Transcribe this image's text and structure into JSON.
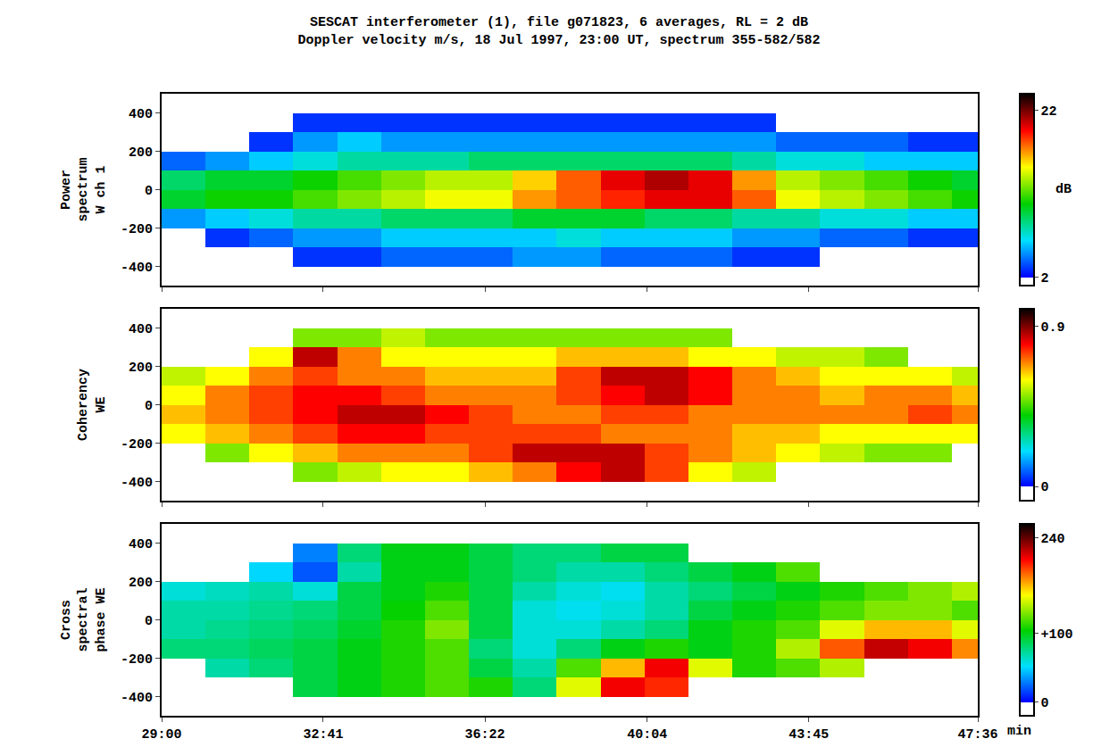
{
  "title": "SESCAT interferometer (1), file g071823, 6 averages, RL = 2 dB",
  "subtitle": "Doppler velocity m/s, 18 Jul 1997, 23:00 UT, spectrum 355-582/582",
  "chart_data": [
    {
      "type": "heatmap",
      "ylabel": "Power spectrum W ch 1",
      "tick_labels": "y",
      "x": [
        29.5,
        30.5,
        31.5,
        32.5,
        33.5,
        34.5,
        35.5,
        36.5,
        37.5,
        38.5,
        39.5,
        40.5,
        41.5,
        42.5,
        43.5,
        44.5,
        45.5,
        46.5,
        47.5
      ],
      "y": [
        -450,
        -350,
        -250,
        -150,
        -50,
        50,
        150,
        250,
        350,
        450
      ],
      "z": [
        [
          null,
          null,
          null,
          null,
          null,
          null,
          null,
          null,
          null,
          null,
          null,
          null,
          null,
          null,
          null,
          null,
          null,
          null,
          null
        ],
        [
          null,
          null,
          null,
          3,
          3,
          4,
          4,
          4,
          5,
          5,
          4,
          4,
          4,
          3,
          3,
          null,
          null,
          null,
          null
        ],
        [
          null,
          3,
          4,
          5,
          5,
          6,
          6,
          6,
          6,
          7,
          6,
          6,
          6,
          5,
          5,
          4,
          4,
          3,
          3
        ],
        [
          5,
          6,
          7,
          8,
          8,
          9,
          9,
          9,
          10,
          10,
          10,
          9,
          9,
          8,
          8,
          7,
          7,
          6,
          6
        ],
        [
          10,
          11,
          11,
          12,
          13,
          14,
          15,
          15,
          17,
          18,
          19,
          20,
          20,
          18,
          15,
          14,
          13,
          12,
          11
        ],
        [
          9,
          10,
          10,
          11,
          12,
          13,
          14,
          14,
          16,
          18,
          20,
          21,
          20,
          17,
          14,
          13,
          12,
          11,
          10
        ],
        [
          4,
          5,
          6,
          7,
          8,
          8,
          8,
          9,
          9,
          9,
          9,
          9,
          9,
          8,
          7,
          7,
          6,
          6,
          6
        ],
        [
          null,
          null,
          3,
          5,
          6,
          5,
          5,
          5,
          5,
          5,
          5,
          5,
          5,
          5,
          4,
          4,
          4,
          3,
          3
        ],
        [
          null,
          null,
          null,
          3,
          3,
          3,
          3,
          3,
          3,
          3,
          3,
          3,
          3,
          3,
          null,
          null,
          null,
          null,
          null
        ],
        [
          null,
          null,
          null,
          null,
          null,
          null,
          null,
          null,
          null,
          null,
          null,
          null,
          null,
          null,
          null,
          null,
          null,
          null,
          null
        ]
      ],
      "xlim": [
        29,
        47.6
      ],
      "xticks": [
        {
          "value": 29,
          "label": "29:00"
        },
        {
          "value": 32.683,
          "label": "32:41"
        },
        {
          "value": 36.367,
          "label": "36:22"
        },
        {
          "value": 40.067,
          "label": "40:04"
        },
        {
          "value": 43.75,
          "label": "43:45"
        },
        {
          "value": 47.6,
          "label": "47:36"
        }
      ],
      "ylim": [
        -500,
        500
      ],
      "yticks": [
        -400,
        -200,
        0,
        200,
        400
      ],
      "zlim": [
        1,
        24
      ],
      "zticks": [
        2,
        22
      ],
      "colorbar_title": "dB"
    },
    {
      "type": "heatmap",
      "ylabel": "Coherency WE",
      "tick_labels": "y",
      "x": [
        29.5,
        30.5,
        31.5,
        32.5,
        33.5,
        34.5,
        35.5,
        36.5,
        37.5,
        38.5,
        39.5,
        40.5,
        41.5,
        42.5,
        43.5,
        44.5,
        45.5,
        46.5,
        47.5
      ],
      "y": [
        -450,
        -350,
        -250,
        -150,
        -50,
        50,
        150,
        250,
        350,
        450
      ],
      "z": [
        [
          null,
          null,
          null,
          null,
          null,
          null,
          null,
          null,
          null,
          null,
          null,
          null,
          null,
          null,
          null,
          null,
          null,
          null,
          null
        ],
        [
          null,
          null,
          null,
          0.5,
          0.55,
          0.6,
          0.6,
          0.65,
          0.7,
          0.8,
          0.85,
          0.75,
          0.6,
          0.55,
          null,
          null,
          null,
          null,
          null
        ],
        [
          null,
          0.5,
          0.6,
          0.65,
          0.7,
          0.7,
          0.7,
          0.75,
          0.85,
          0.85,
          0.85,
          0.75,
          0.7,
          0.65,
          0.6,
          0.55,
          0.5,
          0.5,
          null
        ],
        [
          0.6,
          0.65,
          0.7,
          0.75,
          0.8,
          0.8,
          0.75,
          0.75,
          0.75,
          0.75,
          0.7,
          0.7,
          0.7,
          0.65,
          0.65,
          0.6,
          0.6,
          0.6,
          0.6
        ],
        [
          0.65,
          0.7,
          0.75,
          0.8,
          0.85,
          0.85,
          0.8,
          0.75,
          0.7,
          0.7,
          0.75,
          0.75,
          0.7,
          0.7,
          0.7,
          0.7,
          0.7,
          0.75,
          0.7
        ],
        [
          0.6,
          0.7,
          0.75,
          0.8,
          0.8,
          0.75,
          0.7,
          0.7,
          0.7,
          0.75,
          0.8,
          0.85,
          0.8,
          0.7,
          0.7,
          0.65,
          0.7,
          0.7,
          0.65
        ],
        [
          0.55,
          0.6,
          0.7,
          0.75,
          0.7,
          0.7,
          0.65,
          0.65,
          0.65,
          0.75,
          0.85,
          0.85,
          0.8,
          0.7,
          0.65,
          0.6,
          0.6,
          0.6,
          0.55
        ],
        [
          null,
          null,
          0.6,
          0.85,
          0.7,
          0.6,
          0.6,
          0.6,
          0.6,
          0.65,
          0.65,
          0.65,
          0.6,
          0.6,
          0.55,
          0.55,
          0.5,
          null,
          null
        ],
        [
          null,
          null,
          null,
          0.5,
          0.5,
          0.55,
          0.5,
          0.5,
          0.5,
          0.5,
          0.5,
          0.5,
          0.5,
          null,
          null,
          null,
          null,
          null,
          null
        ],
        [
          null,
          null,
          null,
          null,
          null,
          null,
          null,
          null,
          null,
          null,
          null,
          null,
          null,
          null,
          null,
          null,
          null,
          null,
          null
        ]
      ],
      "xlim": [
        29,
        47.6
      ],
      "xticks": [
        {
          "value": 29,
          "label": "29:00"
        },
        {
          "value": 32.683,
          "label": "32:41"
        },
        {
          "value": 36.367,
          "label": "36:22"
        },
        {
          "value": 40.067,
          "label": "40:04"
        },
        {
          "value": 43.75,
          "label": "43:45"
        },
        {
          "value": 47.6,
          "label": "47:36"
        }
      ],
      "ylim": [
        -500,
        500
      ],
      "yticks": [
        -400,
        -200,
        0,
        200,
        400
      ],
      "zlim": [
        -0.08,
        1.0
      ],
      "zticks": [
        0,
        0.9
      ]
    },
    {
      "type": "heatmap",
      "ylabel": "Cross spectral phase WE",
      "xlabel": "min",
      "x": [
        29.5,
        30.5,
        31.5,
        32.5,
        33.5,
        34.5,
        35.5,
        36.5,
        37.5,
        38.5,
        39.5,
        40.5,
        41.5,
        42.5,
        43.5,
        44.5,
        45.5,
        46.5,
        47.5
      ],
      "y": [
        -450,
        -350,
        -250,
        -150,
        -50,
        50,
        150,
        250,
        350,
        450
      ],
      "z": [
        [
          null,
          null,
          null,
          null,
          null,
          null,
          null,
          null,
          null,
          null,
          null,
          null,
          null,
          null,
          null,
          null,
          null,
          null,
          null
        ],
        [
          null,
          null,
          null,
          90,
          100,
          110,
          120,
          110,
          80,
          150,
          210,
          200,
          null,
          null,
          null,
          null,
          null,
          null,
          null
        ],
        [
          null,
          70,
          80,
          90,
          100,
          110,
          120,
          90,
          70,
          120,
          170,
          210,
          150,
          110,
          120,
          140,
          null,
          null,
          null
        ],
        [
          80,
          80,
          85,
          90,
          100,
          110,
          120,
          80,
          60,
          80,
          100,
          110,
          100,
          110,
          140,
          190,
          220,
          210,
          180
        ],
        [
          70,
          75,
          80,
          85,
          95,
          110,
          130,
          90,
          60,
          60,
          70,
          80,
          100,
          110,
          120,
          150,
          170,
          170,
          150
        ],
        [
          70,
          70,
          75,
          80,
          90,
          105,
          120,
          90,
          60,
          55,
          60,
          70,
          90,
          100,
          110,
          120,
          130,
          130,
          120
        ],
        [
          60,
          65,
          70,
          60,
          90,
          100,
          110,
          90,
          70,
          60,
          55,
          70,
          80,
          90,
          100,
          110,
          120,
          130,
          140
        ],
        [
          null,
          null,
          50,
          20,
          70,
          100,
          100,
          90,
          80,
          70,
          70,
          80,
          90,
          100,
          120,
          null,
          null,
          null,
          null
        ],
        [
          null,
          null,
          null,
          30,
          80,
          100,
          100,
          90,
          80,
          80,
          90,
          90,
          null,
          null,
          null,
          null,
          null,
          null,
          null
        ],
        [
          null,
          null,
          null,
          null,
          null,
          null,
          null,
          null,
          null,
          null,
          null,
          null,
          null,
          null,
          null,
          null,
          null,
          null,
          null
        ]
      ],
      "xlim": [
        29,
        47.6
      ],
      "xticks": [
        {
          "value": 29,
          "label": "29:00"
        },
        {
          "value": 32.683,
          "label": "32:41"
        },
        {
          "value": 36.367,
          "label": "36:22"
        },
        {
          "value": 40.067,
          "label": "40:04"
        },
        {
          "value": 43.75,
          "label": "43:45"
        },
        {
          "value": 47.6,
          "label": "47:36"
        }
      ],
      "ylim": [
        -500,
        500
      ],
      "yticks": [
        -400,
        -200,
        0,
        200,
        400
      ],
      "zlim": [
        -20,
        260
      ],
      "zticks": [
        0,
        {
          "value": 100,
          "label": "+100"
        },
        240
      ]
    }
  ]
}
